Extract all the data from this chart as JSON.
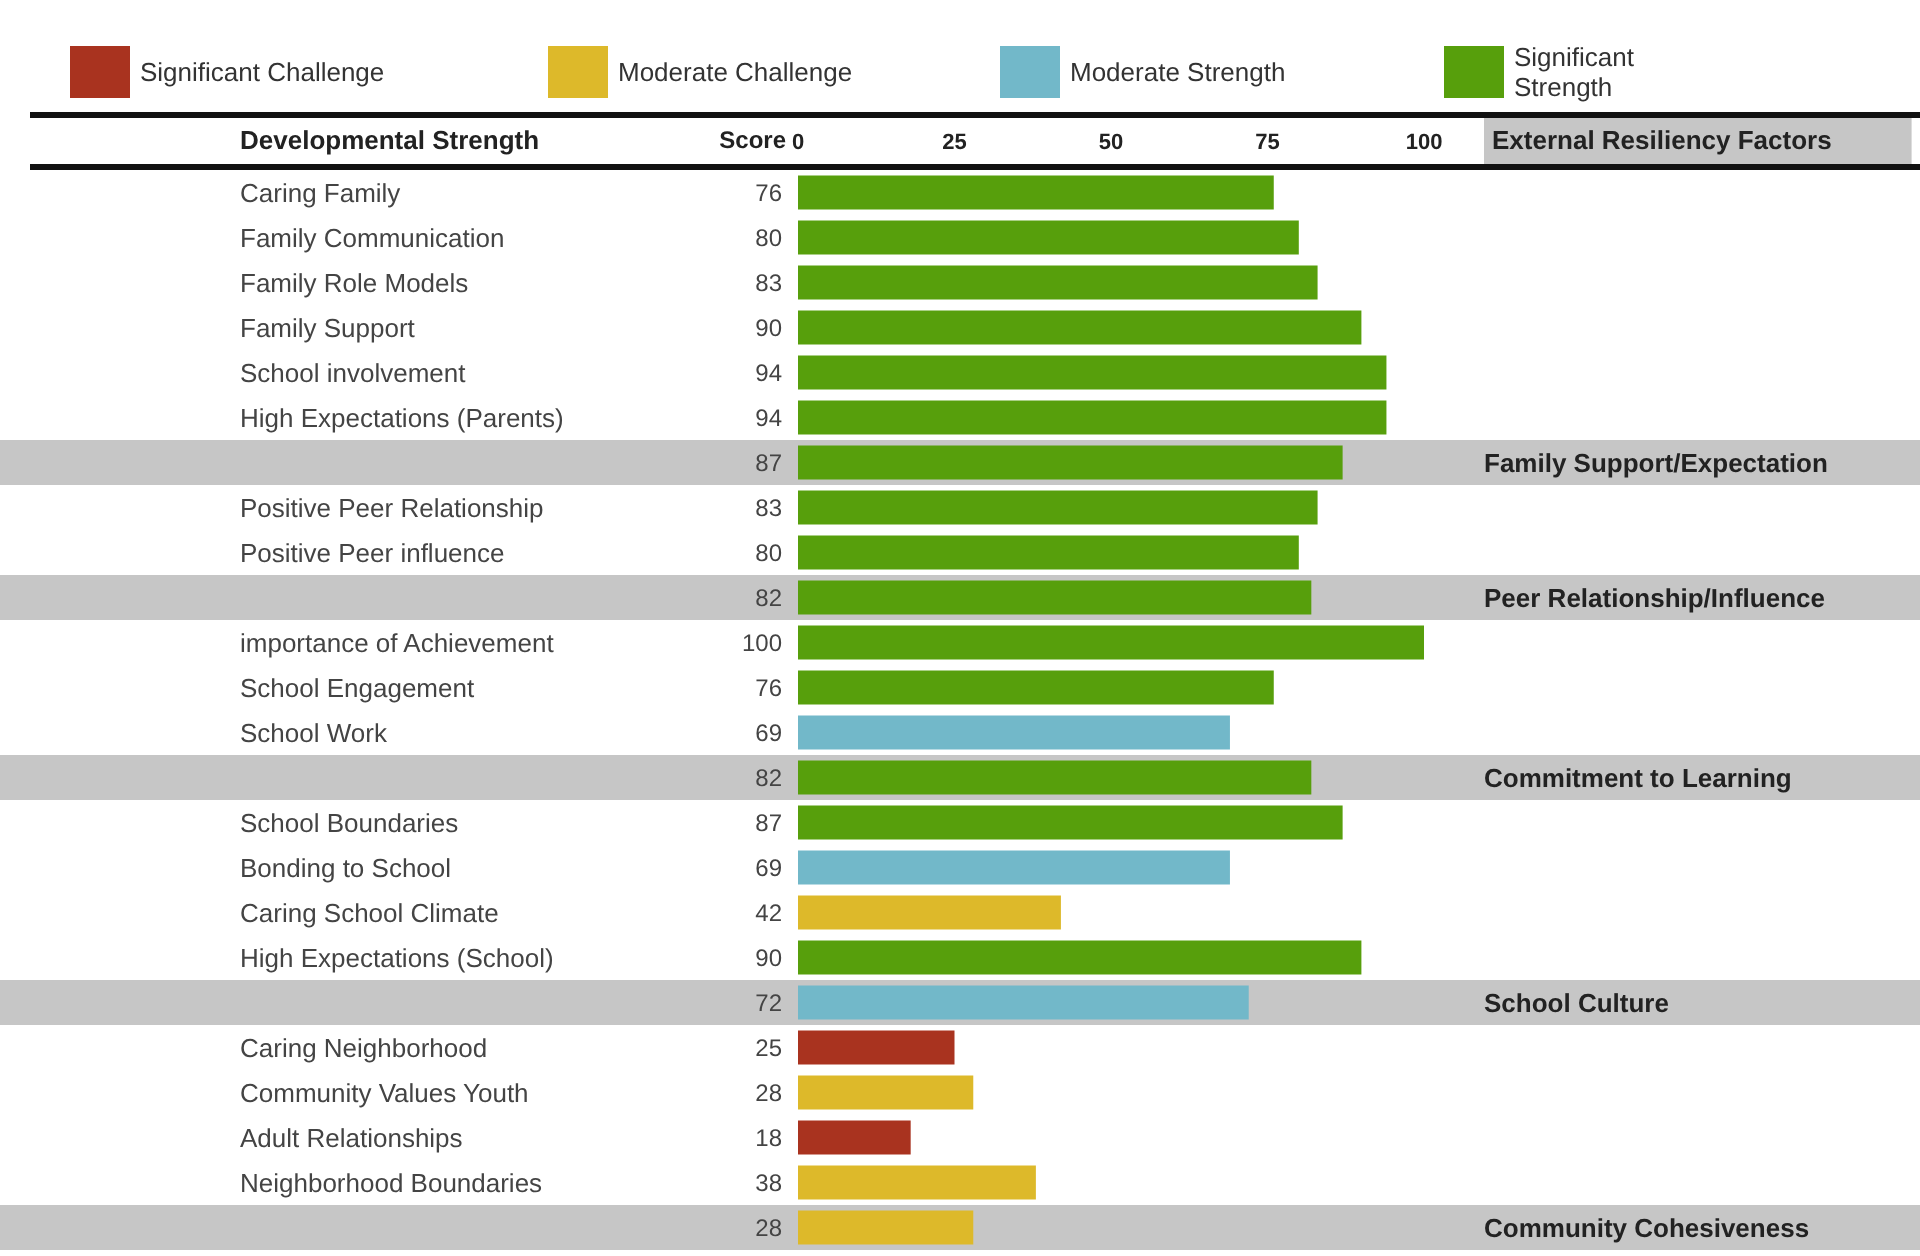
{
  "chart_data": {
    "type": "bar",
    "orientation": "horizontal",
    "ylabel": "Developmental Strength",
    "y2label": "External Resiliency Factors",
    "annotations": [
      "Score"
    ],
    "categories": [
      "Caring Family",
      "Family Communication",
      "Family Role Models",
      "Family Support",
      "School involvement",
      "High Expectations (Parents)",
      null,
      "Positive Peer Relationship",
      "Positive Peer influence",
      null,
      "importance of Achievement",
      "School Engagement",
      "School Work",
      null,
      "School Boundaries",
      "Bonding to School",
      "Caring School Climate",
      "High Expectations (School)",
      null,
      "Caring Neighborhood",
      "Community Values Youth",
      "Adult Relationships",
      "Neighborhood Boundaries",
      null
    ],
    "y2_categories": [
      null,
      null,
      null,
      null,
      null,
      null,
      "Family Support/Expectation",
      null,
      null,
      "Peer Relationship/Influence",
      null,
      null,
      null,
      "Commitment to Learning",
      null,
      null,
      null,
      null,
      "School Culture",
      null,
      null,
      null,
      null,
      "Community Cohesiveness"
    ],
    "series": [
      {
        "name": "Significant Challenge",
        "color": "#a9331f",
        "values": [
          null,
          null,
          null,
          null,
          null,
          null,
          null,
          null,
          null,
          null,
          null,
          null,
          null,
          null,
          null,
          null,
          null,
          null,
          null,
          25,
          null,
          18,
          null,
          null
        ]
      },
      {
        "name": "Moderate Challenge",
        "color": "#ddb92a",
        "values": [
          null,
          null,
          null,
          null,
          null,
          null,
          null,
          null,
          null,
          null,
          null,
          null,
          null,
          null,
          null,
          null,
          42,
          null,
          null,
          null,
          28,
          null,
          38,
          28
        ]
      },
      {
        "name": "Moderate Strength",
        "color": "#72b8c9",
        "values": [
          null,
          null,
          null,
          null,
          null,
          null,
          null,
          null,
          null,
          null,
          null,
          null,
          69,
          null,
          null,
          69,
          null,
          null,
          72,
          null,
          null,
          null,
          null,
          null
        ]
      },
      {
        "name": "Significant Strength",
        "color": "#579f0c",
        "values": [
          76,
          80,
          83,
          90,
          94,
          94,
          87,
          83,
          80,
          82,
          100,
          76,
          null,
          82,
          87,
          null,
          null,
          90,
          null,
          null,
          null,
          null,
          null,
          null
        ]
      }
    ],
    "x2lim": [
      0,
      100
    ],
    "x2ticks": [
      0,
      25,
      50,
      75,
      100
    ],
    "data_labels": true,
    "legend": "top"
  }
}
